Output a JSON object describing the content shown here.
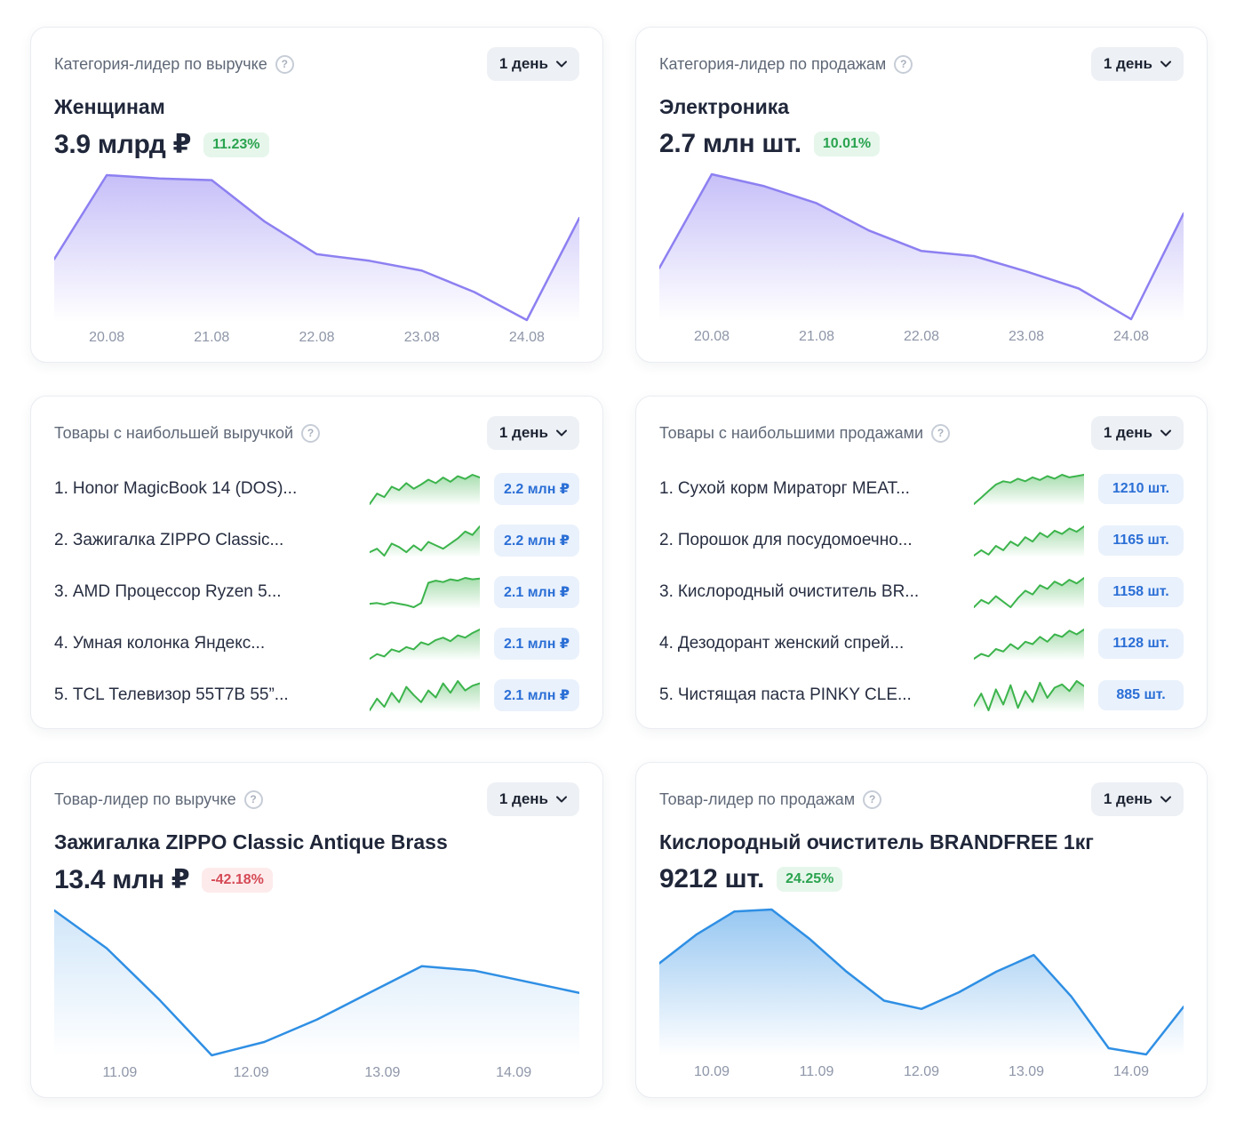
{
  "icons": {
    "help": "?",
    "chevron_down": "⌄"
  },
  "theme": {
    "accent_purple": "#8D80F1",
    "accent_blue": "#2F8FE4",
    "accent_green": "#3CB44C",
    "positive_text": "#2AA34F",
    "positive_bg": "#E6F6EB",
    "negative_text": "#D54A56",
    "negative_bg": "#FDEBEC",
    "value_badge_text": "#2B6FD6",
    "value_badge_bg": "#E9F1FC"
  },
  "cards": [
    {
      "header": "Категория-лидер по выручке",
      "period": "1 день",
      "title": "Женщинам",
      "value": "3.9 млрд ₽",
      "change": "11.23%",
      "change_type": "positive",
      "x_labels": [
        "20.08",
        "21.08",
        "22.08",
        "23.08",
        "24.08"
      ],
      "chart": {
        "type": "area",
        "color": "#8D80F1",
        "fill_opacity": 0.5,
        "stroke": 2.5,
        "values": [
          45,
          96,
          94,
          93,
          68,
          48,
          44,
          38,
          25,
          8,
          70
        ]
      }
    },
    {
      "header": "Категория-лидер по продажам",
      "period": "1 день",
      "title": "Электроника",
      "value": "2.7 млн шт.",
      "change": "10.01%",
      "change_type": "positive",
      "x_labels": [
        "20.08",
        "21.08",
        "22.08",
        "23.08",
        "24.08"
      ],
      "chart": {
        "type": "area",
        "color": "#8D80F1",
        "fill_opacity": 0.5,
        "stroke": 2.5,
        "values": [
          40,
          95,
          88,
          78,
          62,
          50,
          47,
          38,
          28,
          10,
          72
        ]
      }
    },
    {
      "header": "Товары с наибольшей выручкой",
      "period": "1 день",
      "items": [
        {
          "rank": "1.",
          "label": "Honor MagicBook 14 (DOS)...",
          "value": "2.2 млн ₽",
          "spark": {
            "type": "area",
            "color": "#3CB44C",
            "fill_opacity": 0.45,
            "stroke": 2,
            "values": [
              30,
              45,
              40,
              55,
              50,
              60,
              52,
              58,
              65,
              60,
              68,
              62,
              70,
              66,
              72,
              68
            ]
          }
        },
        {
          "rank": "2.",
          "label": "Зажигалка ZIPPO Classic...",
          "value": "2.2 млн ₽",
          "spark": {
            "type": "area",
            "color": "#3CB44C",
            "fill_opacity": 0.45,
            "stroke": 2,
            "values": [
              40,
              42,
              38,
              45,
              43,
              40,
              44,
              41,
              46,
              44,
              42,
              45,
              48,
              52,
              50,
              55
            ]
          }
        },
        {
          "rank": "3.",
          "label": "AMD Процессор Ryzen 5...",
          "value": "2.1 млн ₽",
          "spark": {
            "type": "area",
            "color": "#3CB44C",
            "fill_opacity": 0.45,
            "stroke": 2,
            "values": [
              25,
              26,
              24,
              27,
              25,
              23,
              20,
              26,
              55,
              58,
              56,
              60,
              58,
              62,
              60,
              61
            ]
          }
        },
        {
          "rank": "4.",
          "label": "Умная колонка Яндекс...",
          "value": "2.1 млн ₽",
          "spark": {
            "type": "area",
            "color": "#3CB44C",
            "fill_opacity": 0.45,
            "stroke": 2,
            "values": [
              30,
              34,
              32,
              38,
              36,
              40,
              38,
              44,
              42,
              46,
              48,
              45,
              50,
              48,
              52,
              55
            ]
          }
        },
        {
          "rank": "5.",
          "label": "TCL Телевизор 55T7B 55”...",
          "value": "2.1 млн ₽",
          "spark": {
            "type": "area",
            "color": "#3CB44C",
            "fill_opacity": 0.45,
            "stroke": 2,
            "values": [
              35,
              45,
              38,
              50,
              42,
              55,
              48,
              42,
              52,
              46,
              58,
              50,
              60,
              52,
              56,
              58
            ]
          }
        }
      ]
    },
    {
      "header": "Товары с наибольшими продажами",
      "period": "1 день",
      "items": [
        {
          "rank": "1.",
          "label": "Сухой корм Мираторг MEAT...",
          "value": "1210 шт.",
          "spark": {
            "type": "area",
            "color": "#3CB44C",
            "fill_opacity": 0.45,
            "stroke": 2,
            "values": [
              25,
              35,
              45,
              55,
              60,
              58,
              64,
              60,
              66,
              62,
              68,
              64,
              70,
              66,
              68,
              70
            ]
          }
        },
        {
          "rank": "2.",
          "label": "Порошок для посудомоечно...",
          "value": "1165 шт.",
          "spark": {
            "type": "area",
            "color": "#3CB44C",
            "fill_opacity": 0.45,
            "stroke": 2,
            "values": [
              35,
              40,
              36,
              44,
              40,
              48,
              44,
              52,
              48,
              56,
              52,
              58,
              55,
              60,
              57,
              62
            ]
          }
        },
        {
          "rank": "3.",
          "label": "Кислородный очиститель BR...",
          "value": "1158 шт.",
          "spark": {
            "type": "area",
            "color": "#3CB44C",
            "fill_opacity": 0.45,
            "stroke": 2,
            "values": [
              30,
              38,
              34,
              42,
              36,
              30,
              40,
              48,
              44,
              54,
              50,
              58,
              54,
              60,
              56,
              62
            ]
          }
        },
        {
          "rank": "4.",
          "label": "Дезодорант женский спрей...",
          "value": "1128 шт.",
          "spark": {
            "type": "area",
            "color": "#3CB44C",
            "fill_opacity": 0.45,
            "stroke": 2,
            "values": [
              32,
              36,
              34,
              40,
              38,
              44,
              40,
              46,
              44,
              50,
              46,
              52,
              50,
              55,
              52,
              56
            ]
          }
        },
        {
          "rank": "5.",
          "label": "Чистящая паста PINKY CLE...",
          "value": "885 шт.",
          "spark": {
            "type": "area",
            "color": "#3CB44C",
            "fill_opacity": 0.45,
            "stroke": 2,
            "values": [
              40,
              55,
              35,
              60,
              42,
              65,
              38,
              58,
              45,
              68,
              50,
              62,
              66,
              58,
              70,
              64
            ]
          }
        }
      ]
    },
    {
      "header": "Товар-лидер по выручке",
      "period": "1 день",
      "title": "Зажигалка ZIPPO Classic Antique Brass",
      "value": "13.4 млн ₽",
      "change": "-42.18%",
      "change_type": "negative",
      "x_labels": [
        "11.09",
        "12.09",
        "13.09",
        "14.09"
      ],
      "chart": {
        "type": "area",
        "color": "#2F8FE4",
        "fill_opacity": 0.22,
        "stroke": 2.5,
        "values": [
          75,
          58,
          35,
          10,
          16,
          26,
          38,
          50,
          48,
          43,
          38
        ]
      }
    },
    {
      "header": "Товар-лидер по продажам",
      "period": "1 день",
      "title": "Кислородный очиститель BRANDFREE 1кг",
      "value": "9212 шт.",
      "change": "24.25%",
      "change_type": "positive",
      "x_labels": [
        "10.09",
        "11.09",
        "12.09",
        "13.09",
        "14.09"
      ],
      "chart": {
        "type": "area",
        "color": "#2F8FE4",
        "fill_opacity": 0.5,
        "stroke": 2.5,
        "values": [
          66,
          80,
          91,
          92,
          78,
          62,
          48,
          44,
          52,
          62,
          70,
          50,
          25,
          22,
          45
        ]
      }
    }
  ]
}
